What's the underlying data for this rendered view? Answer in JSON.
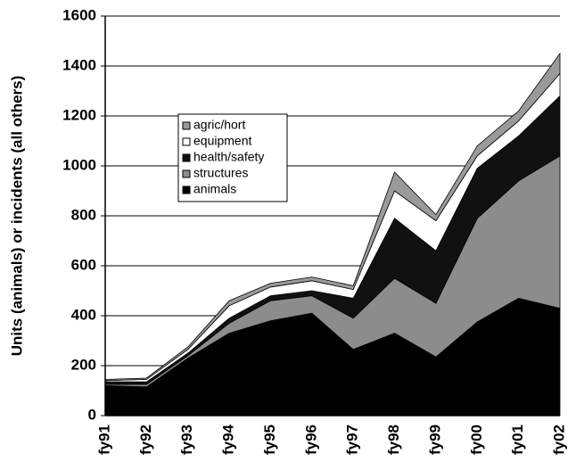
{
  "chart_data": {
    "type": "area",
    "y_label": "Units (animals) or incidents (all others)",
    "categories": [
      "fy91",
      "fy92",
      "fy93",
      "fy94",
      "fy95",
      "fy96",
      "fy97",
      "fy98",
      "fy99",
      "fy00",
      "fy01",
      "fy02"
    ],
    "stacked": true,
    "series": [
      {
        "name": "animals",
        "color": "#000000",
        "values": [
          120,
          115,
          230,
          330,
          380,
          410,
          265,
          330,
          235,
          375,
          470,
          430
        ]
      },
      {
        "name": "structures",
        "color": "#8c8c8c",
        "values": [
          5,
          10,
          10,
          40,
          80,
          70,
          125,
          220,
          215,
          415,
          470,
          610
        ]
      },
      {
        "name": "health/safety",
        "color": "#111111",
        "values": [
          10,
          10,
          10,
          20,
          20,
          20,
          80,
          240,
          210,
          200,
          180,
          240
        ]
      },
      {
        "name": "equipment",
        "color": "#ffffff",
        "values": [
          5,
          10,
          15,
          50,
          35,
          40,
          35,
          110,
          120,
          50,
          60,
          90
        ]
      },
      {
        "name": "agric/hort",
        "color": "#9a9a9a",
        "values": [
          5,
          5,
          10,
          20,
          15,
          15,
          15,
          75,
          25,
          40,
          40,
          80
        ]
      }
    ],
    "ylim": [
      0,
      1600
    ],
    "yticks": [
      0,
      200,
      400,
      600,
      800,
      1000,
      1200,
      1400,
      1600
    ],
    "grid": true,
    "legend": "center left"
  }
}
